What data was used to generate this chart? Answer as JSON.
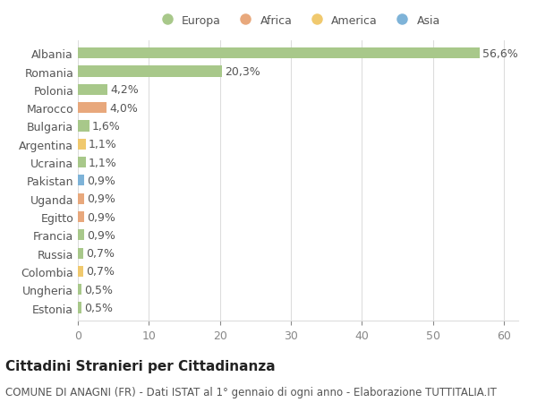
{
  "countries": [
    "Albania",
    "Romania",
    "Polonia",
    "Marocco",
    "Bulgaria",
    "Argentina",
    "Ucraina",
    "Pakistan",
    "Uganda",
    "Egitto",
    "Francia",
    "Russia",
    "Colombia",
    "Ungheria",
    "Estonia"
  ],
  "values": [
    56.6,
    20.3,
    4.2,
    4.0,
    1.6,
    1.1,
    1.1,
    0.9,
    0.9,
    0.9,
    0.9,
    0.7,
    0.7,
    0.5,
    0.5
  ],
  "labels": [
    "56,6%",
    "20,3%",
    "4,2%",
    "4,0%",
    "1,6%",
    "1,1%",
    "1,1%",
    "0,9%",
    "0,9%",
    "0,9%",
    "0,9%",
    "0,7%",
    "0,7%",
    "0,5%",
    "0,5%"
  ],
  "categories": [
    "Europa",
    "Africa",
    "America",
    "Asia"
  ],
  "continent": [
    "Europa",
    "Europa",
    "Europa",
    "Africa",
    "Europa",
    "America",
    "Europa",
    "Asia",
    "Africa",
    "Africa",
    "Europa",
    "Europa",
    "America",
    "Europa",
    "Europa"
  ],
  "continent_colors": {
    "Europa": "#a8c88a",
    "Africa": "#e8a87c",
    "America": "#f0c96e",
    "Asia": "#7eb3d8"
  },
  "legend_colors": [
    "#a8c88a",
    "#e8a87c",
    "#f0c96e",
    "#7eb3d8"
  ],
  "bg_color": "#ffffff",
  "grid_color": "#dddddd",
  "title_main": "Cittadini Stranieri per Cittadinanza",
  "title_sub": "COMUNE DI ANAGNI (FR) - Dati ISTAT al 1° gennaio di ogni anno - Elaborazione TUTTITALIA.IT",
  "xlim": [
    0,
    62
  ],
  "bar_height": 0.6,
  "label_fontsize": 9,
  "tick_fontsize": 9,
  "title_fontsize": 11,
  "subtitle_fontsize": 8.5
}
